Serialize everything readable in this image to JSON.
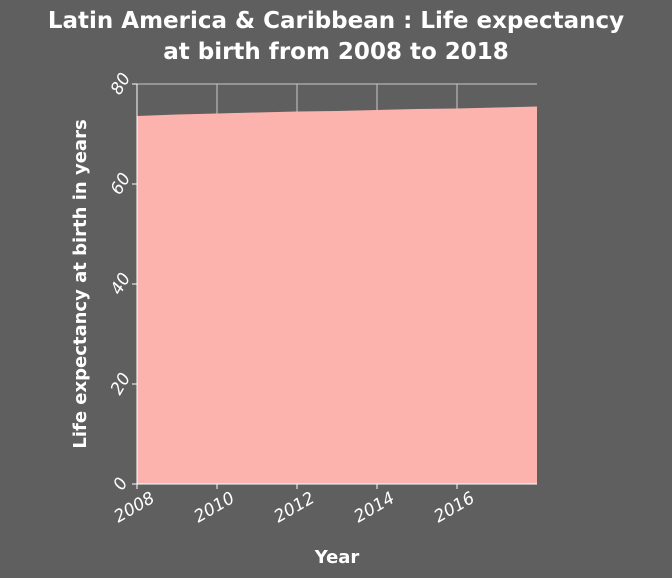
{
  "chart_data": {
    "type": "area",
    "title_lines": [
      "Latin America & Caribbean : Life expectancy",
      "at birth from 2008 to 2018"
    ],
    "title": "Latin America & Caribbean : Life expectancy at birth from 2008 to 2018",
    "xlabel": "Year",
    "ylabel": "Life expectancy at birth in years",
    "x": [
      2008,
      2009,
      2010,
      2011,
      2012,
      2013,
      2014,
      2015,
      2016,
      2017,
      2018
    ],
    "values": [
      73.6,
      73.9,
      74.1,
      74.3,
      74.5,
      74.6,
      74.8,
      75.0,
      75.1,
      75.3,
      75.5
    ],
    "xlim": [
      2008,
      2018
    ],
    "ylim": [
      0,
      80
    ],
    "xticks": [
      2008,
      2010,
      2012,
      2014,
      2016
    ],
    "yticks": [
      0,
      20,
      40,
      60,
      80
    ],
    "grid": true,
    "colors": {
      "background": "#5f5f5f",
      "area_fill": "#fcb3ad",
      "grid": "#c9c9c9",
      "text": "#ffffff"
    }
  }
}
